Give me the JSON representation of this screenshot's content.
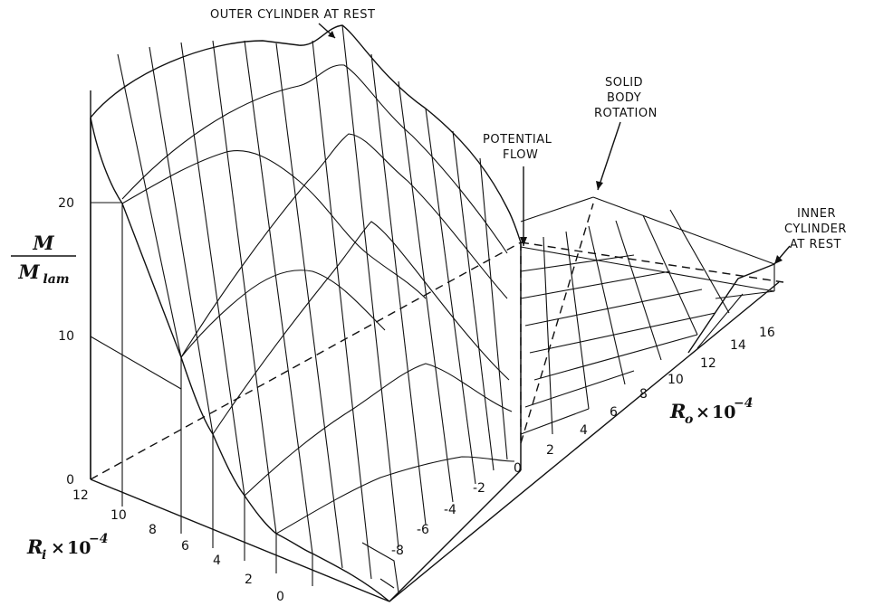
{
  "chart_data": {
    "type": "surface-3d",
    "zlabel": {
      "numerator": "M",
      "denominator_base": "M",
      "denominator_sub": "lam"
    },
    "xlabel": {
      "base": "R",
      "sub": "i",
      "times": "×",
      "power_base": "10",
      "power_exp": "−4"
    },
    "ylabel": {
      "base": "R",
      "sub": "o",
      "times": "×",
      "power_base": "10",
      "power_exp": "−4"
    },
    "z_ticks": [
      "0",
      "10",
      "20"
    ],
    "ri_ticks": [
      "12",
      "10",
      "8",
      "6",
      "4",
      "2",
      "0"
    ],
    "ro_ticks": [
      "-8",
      "-6",
      "-4",
      "-2",
      "0",
      "2",
      "4",
      "6",
      "8",
      "10",
      "12",
      "14",
      "16"
    ],
    "ri_range": [
      0,
      12
    ],
    "ro_range": [
      -10,
      16
    ],
    "z_range": [
      0,
      25
    ],
    "annotations": {
      "outer_at_rest": "OUTER CYLINDER AT REST",
      "potential_flow": [
        "POTENTIAL",
        "FLOW"
      ],
      "solid_body": [
        "SOLID",
        "BODY",
        "ROTATION"
      ],
      "inner_at_rest": [
        "INNER",
        "CYLINDER",
        "AT REST"
      ]
    },
    "surface_ridge_values": {
      "note": "",
      "ri": [
        0,
        2,
        4,
        6,
        8,
        10,
        12
      ],
      "peak_M_over_Mlam": [
        0.5,
        3,
        6.5,
        11,
        16,
        21,
        24
      ]
    }
  }
}
